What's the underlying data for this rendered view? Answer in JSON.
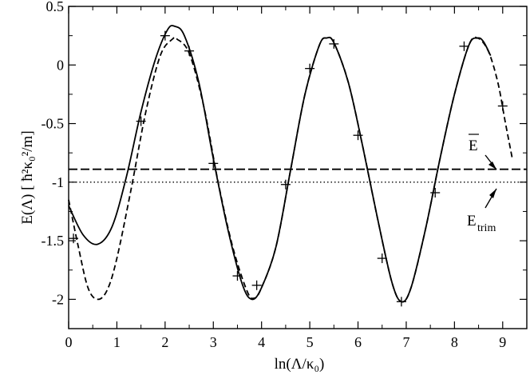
{
  "chart_data": {
    "type": "line",
    "xlabel": "ln(Λ/κ₀)",
    "ylabel": "E(Λ) [ ħ²κ₀²/m]",
    "xlim": [
      0,
      9.5
    ],
    "ylim": [
      -2.25,
      0.5
    ],
    "x_ticks": [
      0,
      1,
      2,
      3,
      4,
      5,
      6,
      7,
      8,
      9
    ],
    "y_ticks": [
      0.5,
      0,
      -0.5,
      -1,
      -1.5,
      -2
    ],
    "y_tick_labels": [
      "0.5",
      "0",
      "-0.5",
      "-1",
      "-1.5",
      "-2"
    ],
    "grid": false,
    "legend": "none",
    "series": [
      {
        "style": "solid",
        "x": [
          0,
          0.3,
          0.6,
          0.9,
          1.2,
          1.5,
          1.8,
          2.05,
          2.2,
          2.4,
          2.7,
          3.0,
          3.3,
          3.6,
          3.8,
          4.0,
          4.3,
          4.6,
          4.9,
          5.2,
          5.35,
          5.5,
          5.8,
          6.1,
          6.4,
          6.7,
          6.9,
          7.1,
          7.4,
          7.7,
          8.0,
          8.3,
          8.48,
          8.6,
          8.75
        ],
        "y": [
          -1.2,
          -1.45,
          -1.53,
          -1.38,
          -0.95,
          -0.4,
          0.05,
          0.3,
          0.33,
          0.25,
          -0.15,
          -0.8,
          -1.4,
          -1.87,
          -2.0,
          -1.9,
          -1.55,
          -0.9,
          -0.25,
          0.17,
          0.23,
          0.19,
          -0.15,
          -0.7,
          -1.3,
          -1.85,
          -2.02,
          -1.9,
          -1.4,
          -0.8,
          -0.25,
          0.17,
          0.23,
          0.2,
          0.08
        ]
      },
      {
        "style": "dashed",
        "x": [
          0,
          0.2,
          0.4,
          0.6,
          0.8,
          1.0,
          1.3,
          1.6,
          1.9,
          2.15,
          2.25,
          2.5,
          2.8,
          3.1,
          3.4,
          3.7,
          3.85,
          4.0,
          4.3,
          4.6,
          4.9,
          5.2,
          5.35,
          5.5,
          5.8,
          6.1,
          6.4,
          6.7,
          6.9,
          7.1,
          7.4,
          7.7,
          8.0,
          8.3,
          8.48,
          8.7,
          8.9,
          9.05,
          9.2
        ],
        "y": [
          -1.15,
          -1.55,
          -1.9,
          -2.0,
          -1.92,
          -1.65,
          -1.05,
          -0.4,
          0.08,
          0.22,
          0.22,
          0.1,
          -0.35,
          -1.0,
          -1.55,
          -1.93,
          -1.99,
          -1.9,
          -1.55,
          -0.9,
          -0.25,
          0.17,
          0.23,
          0.19,
          -0.15,
          -0.7,
          -1.3,
          -1.85,
          -2.02,
          -1.9,
          -1.4,
          -0.8,
          -0.25,
          0.17,
          0.23,
          0.12,
          -0.15,
          -0.48,
          -0.8
        ]
      },
      {
        "style": "long-dashed",
        "x": [
          0,
          9.5
        ],
        "y": [
          -0.89,
          -0.89
        ]
      },
      {
        "style": "dotted",
        "x": [
          0,
          9.5
        ],
        "y": [
          -1.0,
          -1.0
        ]
      },
      {
        "style": "plus-markers",
        "x": [
          0.1,
          1.5,
          2.0,
          2.5,
          3.0,
          3.5,
          3.9,
          4.5,
          5.0,
          5.5,
          6.0,
          6.5,
          6.9,
          7.6,
          8.2,
          9.0
        ],
        "y": [
          -1.48,
          -0.48,
          0.25,
          0.12,
          -0.84,
          -1.8,
          -1.88,
          -1.02,
          -0.03,
          0.18,
          -0.6,
          -1.65,
          -2.02,
          -1.09,
          0.16,
          -0.35
        ]
      }
    ],
    "annotations": [
      {
        "text": "E",
        "overbar": true,
        "arrow_to": [
          8.9,
          -0.89
        ]
      },
      {
        "text": "E",
        "subscript": "trim",
        "arrow_to": [
          8.9,
          -1.0
        ]
      }
    ]
  }
}
